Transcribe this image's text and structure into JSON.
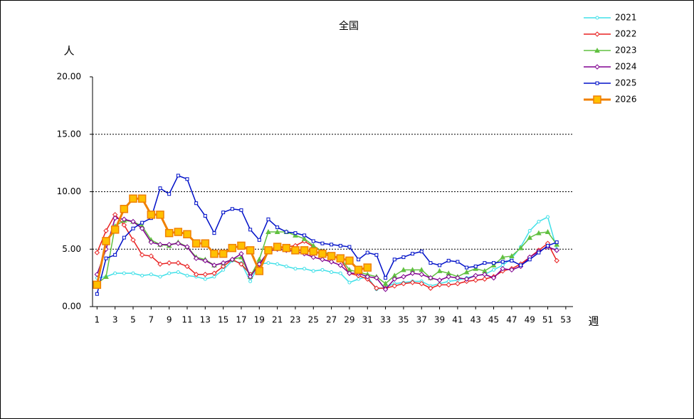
{
  "chart_data": {
    "type": "line",
    "title": "全国",
    "y_label": "人",
    "x_label": "週",
    "x": [
      1,
      2,
      3,
      4,
      5,
      6,
      7,
      8,
      9,
      10,
      11,
      12,
      13,
      14,
      15,
      16,
      17,
      18,
      19,
      20,
      21,
      22,
      23,
      24,
      25,
      26,
      27,
      28,
      29,
      30,
      31,
      32,
      33,
      34,
      35,
      36,
      37,
      38,
      39,
      40,
      41,
      42,
      43,
      44,
      45,
      46,
      47,
      48,
      49,
      50,
      51,
      52
    ],
    "xlim": [
      0.5,
      53.8
    ],
    "xticks": [
      1,
      3,
      5,
      7,
      9,
      11,
      13,
      15,
      17,
      19,
      21,
      23,
      25,
      27,
      29,
      31,
      33,
      35,
      37,
      39,
      41,
      43,
      45,
      47,
      49,
      51,
      53
    ],
    "ylim": [
      0,
      20
    ],
    "yticks": [
      {
        "value": 0,
        "label": "0.00"
      },
      {
        "value": 5,
        "label": "5.00"
      },
      {
        "value": 10,
        "label": "10.00"
      },
      {
        "value": 15,
        "label": "15.00"
      },
      {
        "value": 20,
        "label": "20.00"
      }
    ],
    "grid": true,
    "legend": "top-right",
    "series": [
      {
        "name": "2021",
        "color": "#40e0e8",
        "marker": "circle",
        "values": [
          2.5,
          2.6,
          2.9,
          2.9,
          2.9,
          2.7,
          2.8,
          2.6,
          2.9,
          3.0,
          2.7,
          2.6,
          2.4,
          2.6,
          3.2,
          4.0,
          3.8,
          2.2,
          3.7,
          3.8,
          3.7,
          3.5,
          3.3,
          3.3,
          3.1,
          3.2,
          3.0,
          2.9,
          2.1,
          2.4,
          2.6,
          1.5,
          1.7,
          2.0,
          2.1,
          2.2,
          2.2,
          1.8,
          2.0,
          2.2,
          2.3,
          2.5,
          2.7,
          2.8,
          3.2,
          3.6,
          4.2,
          5.2,
          6.6,
          7.4,
          7.8,
          5.0
        ]
      },
      {
        "name": "2022",
        "color": "#e82020",
        "marker": "diamond",
        "values": [
          4.7,
          6.6,
          8.0,
          7.1,
          5.8,
          4.5,
          4.4,
          3.7,
          3.8,
          3.8,
          3.5,
          2.8,
          2.8,
          2.9,
          3.5,
          4.1,
          3.7,
          2.8,
          3.6,
          4.8,
          5.2,
          5.2,
          5.3,
          5.7,
          5.2,
          4.8,
          4.4,
          4.1,
          2.9,
          2.7,
          2.4,
          1.6,
          1.6,
          1.8,
          2.0,
          2.1,
          2.0,
          1.6,
          1.9,
          1.9,
          2.0,
          2.2,
          2.3,
          2.4,
          2.6,
          3.1,
          3.3,
          3.7,
          4.3,
          4.9,
          5.5,
          4.0
        ]
      },
      {
        "name": "2023",
        "color": "#60c040",
        "marker": "triangle",
        "values": [
          2.0,
          2.6,
          7.0,
          7.5,
          7.4,
          7.0,
          5.8,
          5.4,
          5.3,
          5.6,
          5.2,
          4.3,
          4.1,
          3.6,
          3.8,
          4.1,
          4.3,
          2.6,
          4.1,
          6.5,
          6.5,
          6.5,
          6.2,
          5.9,
          5.3,
          4.8,
          4.5,
          4.2,
          3.2,
          3.0,
          2.8,
          2.6,
          2.0,
          2.7,
          3.2,
          3.2,
          3.2,
          2.5,
          3.1,
          2.9,
          2.6,
          3.0,
          3.3,
          3.1,
          3.6,
          4.3,
          4.4,
          5.1,
          6.0,
          6.4,
          6.5,
          5.4
        ]
      },
      {
        "name": "2024",
        "color": "#800090",
        "marker": "diamond",
        "values": [
          2.8,
          5.0,
          7.7,
          7.6,
          7.4,
          6.8,
          5.6,
          5.4,
          5.4,
          5.5,
          5.2,
          4.2,
          4.0,
          3.6,
          3.8,
          4.1,
          4.6,
          2.6,
          3.7,
          4.8,
          5.0,
          4.9,
          4.8,
          4.6,
          4.3,
          4.1,
          3.9,
          3.6,
          2.9,
          2.9,
          2.6,
          2.5,
          1.5,
          2.4,
          2.6,
          2.9,
          2.8,
          2.5,
          2.3,
          2.6,
          2.5,
          2.4,
          2.7,
          2.8,
          2.5,
          3.3,
          3.2,
          3.5,
          4.3,
          4.8,
          5.2,
          4.9
        ]
      },
      {
        "name": "2025",
        "color": "#0010c8",
        "marker": "square",
        "values": [
          1.1,
          4.2,
          4.5,
          6.0,
          6.8,
          7.3,
          7.7,
          10.3,
          9.8,
          11.4,
          11.1,
          9.0,
          7.9,
          6.4,
          8.2,
          8.5,
          8.4,
          6.7,
          5.8,
          7.6,
          6.9,
          6.5,
          6.4,
          6.2,
          5.7,
          5.5,
          5.4,
          5.3,
          5.2,
          4.1,
          4.7,
          4.5,
          2.5,
          4.1,
          4.3,
          4.6,
          4.8,
          3.8,
          3.6,
          4.0,
          3.9,
          3.4,
          3.5,
          3.8,
          3.8,
          3.9,
          4.0,
          3.6,
          4.1,
          4.7,
          5.3,
          5.6
        ]
      },
      {
        "name": "2026",
        "color": "#f08000",
        "marker": "bigsquare",
        "values": [
          1.9,
          5.7,
          6.7,
          8.5,
          9.4,
          9.4,
          8.0,
          8.0,
          6.4,
          6.5,
          6.3,
          5.5,
          5.5,
          4.6,
          4.6,
          5.1,
          5.3,
          4.9,
          3.1,
          4.9,
          5.2,
          5.1,
          4.9,
          4.9,
          4.8,
          4.6,
          4.4,
          4.2,
          4.0,
          3.2,
          3.4,
          null,
          null,
          null,
          null,
          null,
          null,
          null,
          null,
          null,
          null,
          null,
          null,
          null,
          null,
          null,
          null,
          null,
          null,
          null,
          null,
          null
        ]
      }
    ]
  }
}
